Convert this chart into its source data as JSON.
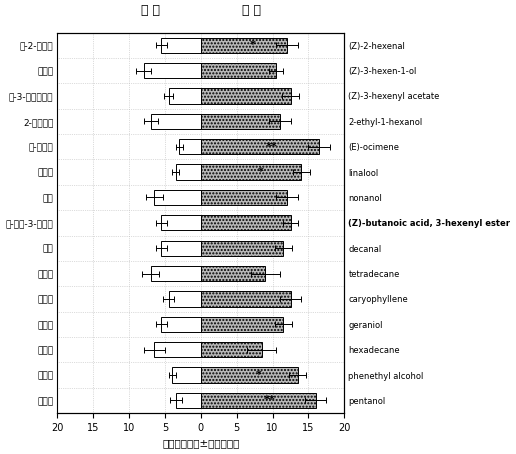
{
  "title_left": "对 照",
  "title_right": "处 理",
  "xlabel": "叶蝶平均数（±标准误差）",
  "xlim": [
    -20,
    20
  ],
  "xticks": [
    -20,
    -15,
    -10,
    -5,
    0,
    5,
    10,
    15,
    20
  ],
  "xticklabels": [
    "20",
    "15",
    "10",
    "5",
    "0",
    "5",
    "10",
    "15",
    "20"
  ],
  "rows": [
    {
      "label_cn": "反-2-己烯醒",
      "label_en": "(Z)-2-hexenal",
      "label_en_bold": false,
      "ctrl_mean": 5.5,
      "ctrl_err": 0.8,
      "treat_mean": 12.0,
      "treat_err": 1.5,
      "significance": "*"
    },
    {
      "label_cn": "青叶醇",
      "label_en": "(Z)-3-hexen-1-ol",
      "label_en_bold": false,
      "ctrl_mean": 8.0,
      "ctrl_err": 1.0,
      "treat_mean": 10.5,
      "treat_err": 1.0,
      "significance": ""
    },
    {
      "label_cn": "顺-3-己烯乙酸酯",
      "label_en": "(Z)-3-hexenyl acetate",
      "label_en_bold": false,
      "ctrl_mean": 4.5,
      "ctrl_err": 0.6,
      "treat_mean": 12.5,
      "treat_err": 1.2,
      "significance": ""
    },
    {
      "label_cn": "2-乙基己醇",
      "label_en": "2-ethyl-1-hexanol",
      "label_en_bold": false,
      "ctrl_mean": 7.0,
      "ctrl_err": 1.0,
      "treat_mean": 11.0,
      "treat_err": 1.5,
      "significance": ""
    },
    {
      "label_cn": "反-罗勒烯",
      "label_en": "(E)-ocimene",
      "label_en_bold": false,
      "ctrl_mean": 3.0,
      "ctrl_err": 0.5,
      "treat_mean": 16.5,
      "treat_err": 1.5,
      "significance": "**"
    },
    {
      "label_cn": "芳樟醇",
      "label_en": "linalool",
      "label_en_bold": false,
      "ctrl_mean": 3.5,
      "ctrl_err": 0.5,
      "treat_mean": 14.0,
      "treat_err": 1.2,
      "significance": "*"
    },
    {
      "label_cn": "壬醇",
      "label_en": "nonanol",
      "label_en_bold": false,
      "ctrl_mean": 6.5,
      "ctrl_err": 1.2,
      "treat_mean": 12.0,
      "treat_err": 1.5,
      "significance": ""
    },
    {
      "label_cn": "顺-丁酸-3-己烯酯",
      "label_en": "(Z)-butanoic acid, 3-hexenyl ester",
      "label_en_bold": true,
      "ctrl_mean": 5.5,
      "ctrl_err": 0.8,
      "treat_mean": 12.5,
      "treat_err": 1.0,
      "significance": ""
    },
    {
      "label_cn": "癸醒",
      "label_en": "decanal",
      "label_en_bold": false,
      "ctrl_mean": 5.5,
      "ctrl_err": 0.8,
      "treat_mean": 11.5,
      "treat_err": 1.2,
      "significance": ""
    },
    {
      "label_cn": "十四烷",
      "label_en": "tetradecane",
      "label_en_bold": false,
      "ctrl_mean": 7.0,
      "ctrl_err": 1.2,
      "treat_mean": 9.0,
      "treat_err": 2.0,
      "significance": ""
    },
    {
      "label_cn": "石竹烯",
      "label_en": "caryophyllene",
      "label_en_bold": false,
      "ctrl_mean": 4.5,
      "ctrl_err": 0.8,
      "treat_mean": 12.5,
      "treat_err": 1.5,
      "significance": ""
    },
    {
      "label_cn": "香叶醇",
      "label_en": "geraniol",
      "label_en_bold": false,
      "ctrl_mean": 5.5,
      "ctrl_err": 0.8,
      "treat_mean": 11.5,
      "treat_err": 1.2,
      "significance": ""
    },
    {
      "label_cn": "十六烷",
      "label_en": "hexadecane",
      "label_en_bold": false,
      "ctrl_mean": 6.5,
      "ctrl_err": 1.5,
      "treat_mean": 8.5,
      "treat_err": 2.0,
      "significance": ""
    },
    {
      "label_cn": "苯乙醇",
      "label_en": "phenethyl alcohol",
      "label_en_bold": false,
      "ctrl_mean": 4.0,
      "ctrl_err": 0.5,
      "treat_mean": 13.5,
      "treat_err": 1.2,
      "significance": "*"
    },
    {
      "label_cn": "正戊醇",
      "label_en": "pentanol",
      "label_en_bold": false,
      "ctrl_mean": 3.5,
      "ctrl_err": 0.8,
      "treat_mean": 16.0,
      "treat_err": 1.5,
      "significance": "**"
    }
  ],
  "bar_color": "#b8b8b8",
  "bar_hatch": ".....",
  "ctrl_bar_color": "white",
  "background_color": "white",
  "grid_color": "#bbbbbb",
  "bar_height": 0.6,
  "dpi": 100,
  "figsize": [
    5.16,
    4.54
  ]
}
